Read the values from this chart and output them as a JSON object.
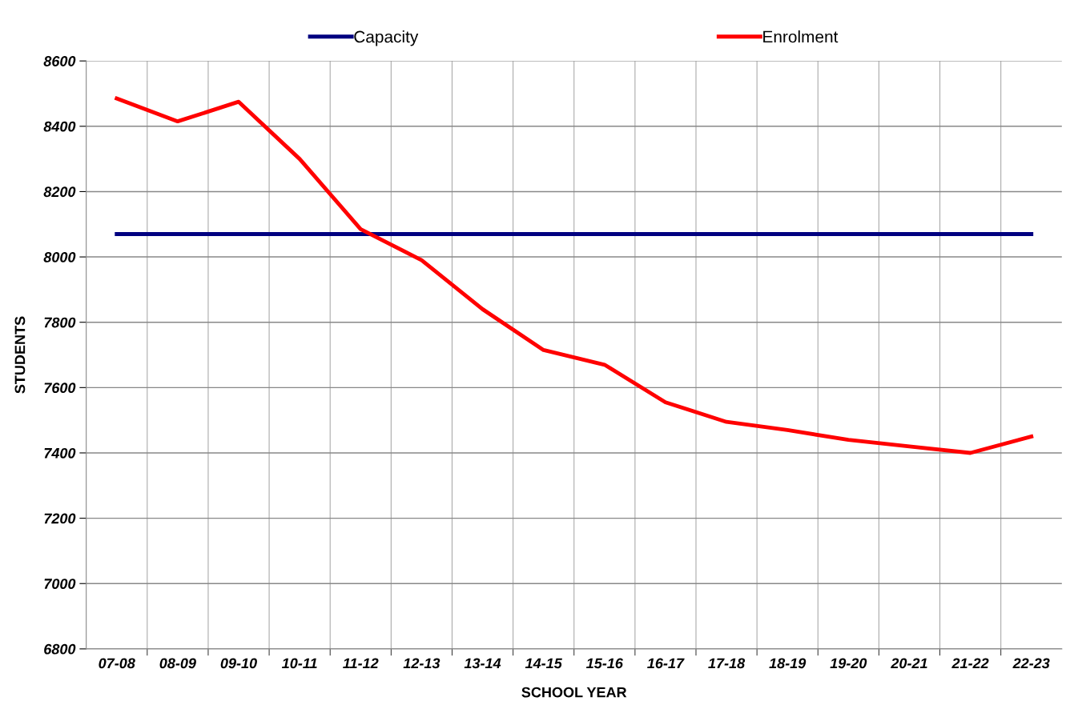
{
  "chart_data": {
    "type": "line",
    "xlabel": "SCHOOL YEAR",
    "ylabel": "STUDENTS",
    "categories": [
      "07-08",
      "08-09",
      "09-10",
      "10-11",
      "11-12",
      "12-13",
      "13-14",
      "14-15",
      "15-16",
      "16-17",
      "17-18",
      "18-19",
      "19-20",
      "20-21",
      "21-22",
      "22-23"
    ],
    "series": [
      {
        "name": "Capacity",
        "color": "#000080",
        "values": [
          8070,
          8070,
          8070,
          8070,
          8070,
          8070,
          8070,
          8070,
          8070,
          8070,
          8070,
          8070,
          8070,
          8070,
          8070,
          8070
        ]
      },
      {
        "name": "Enrolment",
        "color": "#ff0000",
        "values": [
          8485,
          8415,
          8475,
          8300,
          8085,
          7990,
          7840,
          7715,
          7670,
          7555,
          7495,
          7470,
          7440,
          7420,
          7400,
          7450
        ]
      }
    ],
    "ylim": [
      6800,
      8600
    ],
    "yticks": [
      6800,
      7000,
      7200,
      7400,
      7600,
      7800,
      8000,
      8200,
      8400,
      8600
    ],
    "grid": true,
    "legend": "top",
    "marker": "none",
    "line_style": "solid"
  }
}
